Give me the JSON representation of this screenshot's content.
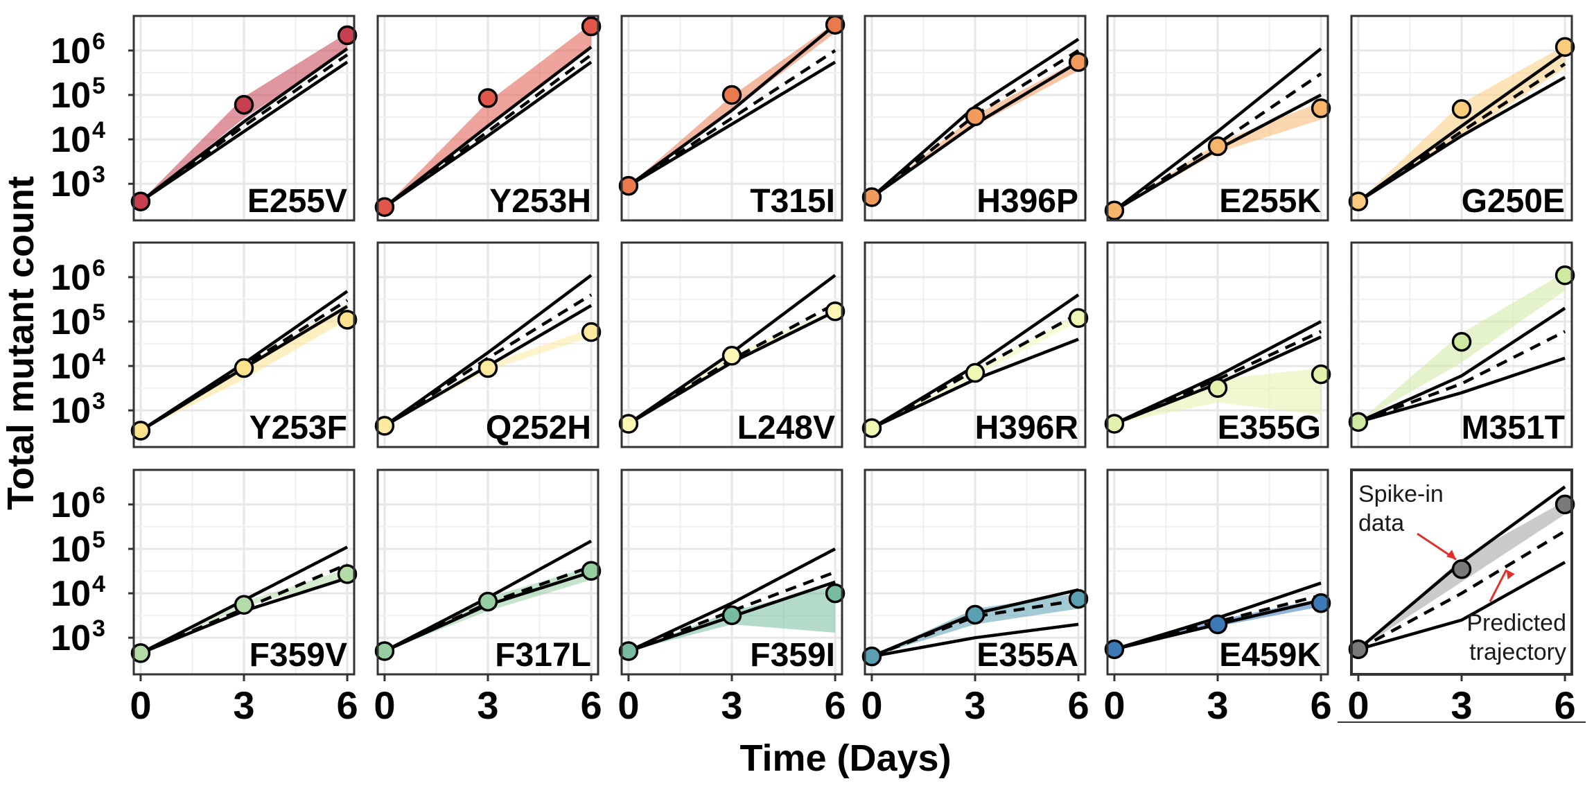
{
  "chart_data": {
    "type": "line",
    "xlabel": "Time (Days)",
    "ylabel": "Total mutant count",
    "x_ticks": [
      0,
      3,
      6
    ],
    "y_scale": "log10",
    "y_ticks": [
      "10^3",
      "10^4",
      "10^5",
      "10^6"
    ],
    "ylim": [
      150,
      6000000
    ],
    "xlim": [
      -0.2,
      6.2
    ],
    "grid": true,
    "panels": [
      {
        "label": "E255V",
        "color": "#c7404f",
        "observed": [
          [
            0,
            400
          ],
          [
            3,
            60000
          ],
          [
            6,
            2200000
          ]
        ],
        "band": [
          [
            400,
            400
          ],
          [
            30000,
            90000
          ],
          [
            1000000,
            2500000
          ]
        ],
        "predicted": [
          400,
          20000,
          800000
        ],
        "lower": [
          400,
          15000,
          550000
        ],
        "upper": [
          400,
          25000,
          1100000
        ]
      },
      {
        "label": "Y253H",
        "color": "#e0574a",
        "observed": [
          [
            0,
            300
          ],
          [
            3,
            85000
          ],
          [
            6,
            3500000
          ]
        ],
        "band": [
          [
            300,
            300
          ],
          [
            20000,
            70000
          ],
          [
            1200000,
            4000000
          ]
        ],
        "predicted": [
          300,
          15000,
          800000
        ],
        "lower": [
          300,
          12000,
          550000
        ],
        "upper": [
          300,
          20000,
          1200000
        ]
      },
      {
        "label": "T315I",
        "color": "#ea7a4e",
        "observed": [
          [
            0,
            900
          ],
          [
            3,
            100000
          ],
          [
            6,
            3800000
          ]
        ],
        "band": [
          [
            900,
            900
          ],
          [
            45000,
            95000
          ],
          [
            2500000,
            4200000
          ]
        ],
        "predicted": [
          900,
          30000,
          1000000
        ],
        "lower": [
          900,
          22000,
          550000
        ],
        "upper": [
          900,
          45000,
          3800000
        ]
      },
      {
        "label": "H396P",
        "color": "#f29b5d",
        "observed": [
          [
            0,
            500
          ],
          [
            3,
            33000
          ],
          [
            6,
            550000
          ]
        ],
        "band": [
          [
            500,
            500
          ],
          [
            20000,
            35000
          ],
          [
            350000,
            600000
          ]
        ],
        "predicted": [
          500,
          35000,
          1000000
        ],
        "lower": [
          500,
          22000,
          550000
        ],
        "upper": [
          500,
          55000,
          1800000
        ]
      },
      {
        "label": "E255K",
        "color": "#f7b56b",
        "observed": [
          [
            0,
            250
          ],
          [
            3,
            7000
          ],
          [
            6,
            50000
          ]
        ],
        "band": [
          [
            250,
            250
          ],
          [
            5000,
            8500
          ],
          [
            28000,
            70000
          ]
        ],
        "predicted": [
          250,
          8000,
          300000
        ],
        "lower": [
          250,
          6000,
          100000
        ],
        "upper": [
          250,
          15000,
          1100000
        ]
      },
      {
        "label": "G250E",
        "color": "#fbcc7e",
        "observed": [
          [
            0,
            400
          ],
          [
            3,
            48000
          ],
          [
            6,
            1200000
          ]
        ],
        "band": [
          [
            400,
            400
          ],
          [
            12000,
            65000
          ],
          [
            400000,
            1300000
          ]
        ],
        "predicted": [
          400,
          15000,
          500000
        ],
        "lower": [
          400,
          12000,
          250000
        ],
        "upper": [
          400,
          20000,
          900000
        ]
      },
      {
        "label": "Y253F",
        "color": "#fde28e",
        "observed": [
          [
            0,
            350
          ],
          [
            3,
            9000
          ],
          [
            6,
            110000
          ]
        ],
        "band": [
          [
            350,
            350
          ],
          [
            5000,
            10000
          ],
          [
            110000,
            250000
          ]
        ],
        "predicted": [
          350,
          10000,
          300000
        ],
        "lower": [
          350,
          9000,
          220000
        ],
        "upper": [
          350,
          11500,
          480000
        ]
      },
      {
        "label": "Q252H",
        "color": "#fdea9f",
        "observed": [
          [
            0,
            450
          ],
          [
            3,
            9000
          ],
          [
            6,
            58000
          ]
        ],
        "band": [
          [
            450,
            450
          ],
          [
            8000,
            11000
          ],
          [
            45000,
            70000
          ]
        ],
        "predicted": [
          450,
          15000,
          400000
        ],
        "lower": [
          450,
          10000,
          230000
        ],
        "upper": [
          450,
          20000,
          1100000
        ]
      },
      {
        "label": "L248V",
        "color": "#fcf6b5",
        "observed": [
          [
            0,
            500
          ],
          [
            3,
            17000
          ],
          [
            6,
            170000
          ]
        ],
        "band": [
          [
            500,
            500
          ],
          [
            14000,
            18000
          ],
          [
            150000,
            190000
          ]
        ],
        "predicted": [
          500,
          14000,
          250000
        ],
        "lower": [
          500,
          12000,
          170000
        ],
        "upper": [
          500,
          20000,
          1100000
        ]
      },
      {
        "label": "H396R",
        "color": "#f1f7b4",
        "observed": [
          [
            0,
            400
          ],
          [
            3,
            7000
          ],
          [
            6,
            120000
          ]
        ],
        "band": [
          [
            400,
            400
          ],
          [
            6000,
            8000
          ],
          [
            100000,
            150000
          ]
        ],
        "predicted": [
          400,
          8000,
          150000
        ],
        "lower": [
          400,
          5000,
          40000
        ],
        "upper": [
          400,
          10000,
          400000
        ]
      },
      {
        "label": "E355G",
        "color": "#e3f3ad",
        "observed": [
          [
            0,
            500
          ],
          [
            3,
            3200
          ],
          [
            6,
            6500
          ]
        ],
        "band": [
          [
            500,
            500
          ],
          [
            1500,
            5000
          ],
          [
            800,
            9000
          ]
        ],
        "predicted": [
          500,
          5000,
          60000
        ],
        "lower": [
          500,
          4000,
          45000
        ],
        "upper": [
          500,
          6000,
          100000
        ]
      },
      {
        "label": "M351T",
        "color": "#cdeaa0",
        "observed": [
          [
            0,
            550
          ],
          [
            3,
            35000
          ],
          [
            6,
            1100000
          ]
        ],
        "band": [
          [
            550,
            550
          ],
          [
            12000,
            55000
          ],
          [
            500000,
            1300000
          ]
        ],
        "predicted": [
          550,
          4000,
          60000
        ],
        "lower": [
          550,
          2500,
          15000
        ],
        "upper": [
          550,
          6000,
          200000
        ]
      },
      {
        "label": "F359V",
        "color": "#b4dca7",
        "observed": [
          [
            0,
            450
          ],
          [
            3,
            5500
          ],
          [
            6,
            27000
          ]
        ],
        "band": [
          [
            450,
            450
          ],
          [
            5000,
            6500
          ],
          [
            22000,
            35000
          ]
        ],
        "predicted": [
          450,
          4500,
          45000
        ],
        "lower": [
          450,
          4000,
          22000
        ],
        "upper": [
          450,
          7000,
          110000
        ]
      },
      {
        "label": "F317L",
        "color": "#96cea1",
        "observed": [
          [
            0,
            500
          ],
          [
            3,
            6500
          ],
          [
            6,
            32000
          ]
        ],
        "band": [
          [
            500,
            500
          ],
          [
            4000,
            8000
          ],
          [
            20000,
            40000
          ]
        ],
        "predicted": [
          500,
          6000,
          40000
        ],
        "lower": [
          500,
          5500,
          30000
        ],
        "upper": [
          500,
          8000,
          150000
        ]
      },
      {
        "label": "F359I",
        "color": "#77bc9e",
        "observed": [
          [
            0,
            500
          ],
          [
            3,
            3200
          ],
          [
            6,
            10000
          ]
        ],
        "band": [
          [
            500,
            500
          ],
          [
            2000,
            4000
          ],
          [
            1300,
            15000
          ]
        ],
        "predicted": [
          500,
          4000,
          30000
        ],
        "lower": [
          500,
          3000,
          18000
        ],
        "upper": [
          500,
          6000,
          100000
        ]
      },
      {
        "label": "E355A",
        "color": "#5a9fb2",
        "observed": [
          [
            0,
            380
          ],
          [
            3,
            3300
          ],
          [
            6,
            7500
          ]
        ],
        "band": [
          [
            380,
            380
          ],
          [
            2000,
            4500
          ],
          [
            4500,
            10000
          ]
        ],
        "predicted": [
          380,
          3000,
          7000
        ],
        "lower": [
          380,
          1000,
          2000
        ],
        "upper": [
          380,
          3500,
          12000
        ]
      },
      {
        "label": "E459K",
        "color": "#3d79b5",
        "observed": [
          [
            0,
            550
          ],
          [
            3,
            2000
          ],
          [
            6,
            6000
          ]
        ],
        "band": [
          [
            550,
            550
          ],
          [
            1800,
            2500
          ],
          [
            5000,
            7500
          ]
        ],
        "predicted": [
          550,
          2300,
          9000
        ],
        "lower": [
          550,
          2000,
          7000
        ],
        "upper": [
          550,
          2800,
          17000
        ]
      }
    ],
    "legend_panel": {
      "color": "#7a7a7a",
      "band_color": "#c4c4c4",
      "observed": [
        [
          0,
          550
        ],
        [
          3,
          35000
        ],
        [
          6,
          1000000
        ]
      ],
      "band": [
        [
          550,
          550
        ],
        [
          18000,
          60000
        ],
        [
          600000,
          1200000
        ]
      ],
      "predicted": [
        550,
        10000,
        250000
      ],
      "lower": [
        550,
        2500,
        50000
      ],
      "upper": [
        550,
        50000,
        2500000
      ],
      "annotations": [
        {
          "text_lines": [
            "Spike-in",
            "data"
          ],
          "target": "observed"
        },
        {
          "text_lines": [
            "Predicted",
            "trajectory"
          ],
          "target": "predicted"
        }
      ]
    }
  }
}
